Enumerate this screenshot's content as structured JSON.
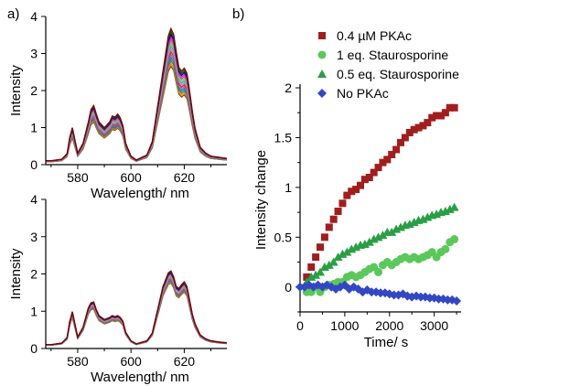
{
  "panel_labels": {
    "a": "a)",
    "b": "b)"
  },
  "chart_data": [
    {
      "id": "a-top",
      "type": "line",
      "xlabel": "Wavelength/ nm",
      "ylabel": "Intensity",
      "xlim": [
        568,
        636
      ],
      "ylim": [
        0,
        4
      ],
      "xticks": [
        580,
        600,
        620
      ],
      "yticks": [
        0,
        1,
        2,
        3,
        4
      ],
      "spectrum_shape": {
        "x": [
          570,
          574,
          576,
          577,
          578,
          579,
          580,
          582,
          584,
          585,
          586,
          587,
          588,
          590,
          592,
          593,
          594,
          595,
          596,
          597,
          598,
          600,
          602,
          606,
          608,
          610,
          612,
          614,
          615,
          616,
          617,
          618,
          619,
          620,
          621,
          622,
          623,
          624,
          626,
          628,
          630,
          634,
          636
        ],
        "y": [
          0.1,
          0.14,
          0.28,
          0.7,
          0.95,
          0.62,
          0.3,
          0.55,
          1.1,
          1.42,
          1.52,
          1.3,
          1.1,
          0.95,
          1.1,
          1.25,
          1.22,
          1.3,
          1.2,
          1.0,
          0.55,
          0.22,
          0.12,
          0.25,
          0.6,
          1.5,
          2.4,
          3.3,
          3.5,
          3.35,
          2.9,
          2.5,
          2.4,
          2.48,
          2.35,
          1.9,
          1.4,
          0.95,
          0.45,
          0.3,
          0.22,
          0.18,
          0.16
        ]
      },
      "series_scale_range": [
        0.76,
        1.05
      ],
      "series_count": 14,
      "colors": [
        "#8b4513",
        "#ff7f00",
        "#2e8b57",
        "#1f77b4",
        "#9467bd",
        "#d62728",
        "#e377c2",
        "#17becf",
        "#bcbd22",
        "#7f7f7f",
        "#ff00ff",
        "#000080",
        "#006400",
        "#800000"
      ]
    },
    {
      "id": "a-bottom",
      "type": "line",
      "xlabel": "Wavelength/ nm",
      "ylabel": "Intensity",
      "xlim": [
        568,
        636
      ],
      "ylim": [
        0,
        4
      ],
      "xticks": [
        580,
        600,
        620
      ],
      "yticks": [
        0,
        1,
        2,
        3,
        4
      ],
      "spectrum_shape": {
        "x": [
          570,
          574,
          576,
          577,
          578,
          579,
          580,
          582,
          584,
          585,
          586,
          587,
          588,
          590,
          592,
          593,
          594,
          595,
          596,
          597,
          598,
          600,
          602,
          606,
          608,
          610,
          612,
          614,
          615,
          616,
          617,
          618,
          619,
          620,
          621,
          622,
          623,
          624,
          626,
          628,
          630,
          634,
          636
        ],
        "y": [
          0.1,
          0.14,
          0.28,
          0.7,
          0.95,
          0.62,
          0.3,
          0.55,
          1.05,
          1.18,
          1.2,
          1.0,
          0.85,
          0.75,
          0.8,
          0.85,
          0.82,
          0.85,
          0.8,
          0.7,
          0.42,
          0.2,
          0.12,
          0.2,
          0.4,
          1.0,
          1.6,
          1.95,
          2.0,
          1.85,
          1.6,
          1.55,
          1.65,
          1.72,
          1.6,
          1.25,
          0.9,
          0.65,
          0.35,
          0.25,
          0.2,
          0.16,
          0.15
        ]
      },
      "series_scale_range": [
        0.88,
        1.04
      ],
      "series_count": 14,
      "colors": [
        "#8b4513",
        "#ff7f00",
        "#2e8b57",
        "#1f77b4",
        "#9467bd",
        "#d62728",
        "#e377c2",
        "#17becf",
        "#bcbd22",
        "#7f7f7f",
        "#ff00ff",
        "#000080",
        "#006400",
        "#800000"
      ]
    },
    {
      "id": "b",
      "type": "scatter",
      "xlabel": "Time/ s",
      "ylabel": "Intensity change",
      "xlim": [
        0,
        3600
      ],
      "ylim": [
        -0.25,
        2.0
      ],
      "xticks": [
        0,
        1000,
        2000,
        3000
      ],
      "yticks": [
        0,
        0.5,
        1,
        1.5,
        2
      ],
      "legend_position": "top-left",
      "series": [
        {
          "name": "0.4 µM PKAc",
          "marker": "square",
          "color": "#a11e1e",
          "x": [
            150,
            250,
            350,
            450,
            550,
            650,
            750,
            850,
            950,
            1050,
            1150,
            1250,
            1350,
            1450,
            1550,
            1650,
            1750,
            1850,
            1950,
            2050,
            2150,
            2250,
            2350,
            2450,
            2550,
            2650,
            2750,
            2850,
            2950,
            3050,
            3150,
            3250,
            3350,
            3450
          ],
          "y": [
            0.1,
            0.2,
            0.3,
            0.4,
            0.5,
            0.6,
            0.68,
            0.76,
            0.84,
            0.92,
            0.96,
            0.98,
            1.02,
            1.08,
            1.1,
            1.15,
            1.2,
            1.25,
            1.28,
            1.33,
            1.38,
            1.45,
            1.5,
            1.55,
            1.58,
            1.6,
            1.62,
            1.65,
            1.7,
            1.72,
            1.72,
            1.75,
            1.8,
            1.8
          ]
        },
        {
          "name": "1 eq. Staurosporine",
          "marker": "circle",
          "color": "#5ac85a",
          "x": [
            150,
            250,
            350,
            450,
            550,
            650,
            750,
            850,
            950,
            1050,
            1150,
            1250,
            1350,
            1450,
            1550,
            1650,
            1750,
            1850,
            1950,
            2050,
            2150,
            2250,
            2350,
            2450,
            2550,
            2650,
            2750,
            2850,
            2950,
            3050,
            3150,
            3250,
            3350,
            3450
          ],
          "y": [
            -0.05,
            -0.05,
            0.0,
            -0.05,
            0.0,
            0.02,
            0.03,
            0.05,
            0.05,
            0.1,
            0.12,
            0.1,
            0.12,
            0.15,
            0.18,
            0.2,
            0.15,
            0.22,
            0.25,
            0.22,
            0.25,
            0.28,
            0.3,
            0.28,
            0.3,
            0.28,
            0.3,
            0.32,
            0.35,
            0.3,
            0.35,
            0.38,
            0.45,
            0.48
          ]
        },
        {
          "name": "0.5 eq. Staurosporine",
          "marker": "triangle",
          "color": "#2a9e45",
          "x": [
            150,
            250,
            350,
            450,
            550,
            650,
            750,
            850,
            950,
            1050,
            1150,
            1250,
            1350,
            1450,
            1550,
            1650,
            1750,
            1850,
            1950,
            2050,
            2150,
            2250,
            2350,
            2450,
            2550,
            2650,
            2750,
            2850,
            2950,
            3050,
            3150,
            3250,
            3350,
            3450
          ],
          "y": [
            0.05,
            0.1,
            0.12,
            0.15,
            0.2,
            0.22,
            0.25,
            0.3,
            0.33,
            0.35,
            0.38,
            0.4,
            0.42,
            0.43,
            0.45,
            0.48,
            0.5,
            0.52,
            0.55,
            0.55,
            0.58,
            0.6,
            0.62,
            0.63,
            0.65,
            0.67,
            0.68,
            0.7,
            0.72,
            0.73,
            0.75,
            0.76,
            0.78,
            0.8
          ]
        },
        {
          "name": "No PKAc",
          "marker": "diamond",
          "color": "#3347c4",
          "x": [
            0,
            100,
            200,
            300,
            400,
            500,
            600,
            700,
            800,
            900,
            1000,
            1100,
            1200,
            1300,
            1400,
            1500,
            1600,
            1700,
            1800,
            1900,
            2000,
            2100,
            2200,
            2300,
            2400,
            2500,
            2600,
            2700,
            2800,
            2900,
            3000,
            3100,
            3200,
            3300,
            3400,
            3500
          ],
          "y": [
            0.0,
            0.0,
            0.02,
            0.0,
            0.02,
            0.0,
            0.02,
            0.0,
            -0.02,
            0.0,
            0.02,
            -0.02,
            0.0,
            -0.02,
            -0.05,
            -0.03,
            -0.05,
            -0.05,
            -0.06,
            -0.06,
            -0.07,
            -0.08,
            -0.08,
            -0.07,
            -0.09,
            -0.1,
            -0.09,
            -0.1,
            -0.1,
            -0.11,
            -0.11,
            -0.12,
            -0.12,
            -0.13,
            -0.13,
            -0.14
          ]
        }
      ]
    }
  ]
}
